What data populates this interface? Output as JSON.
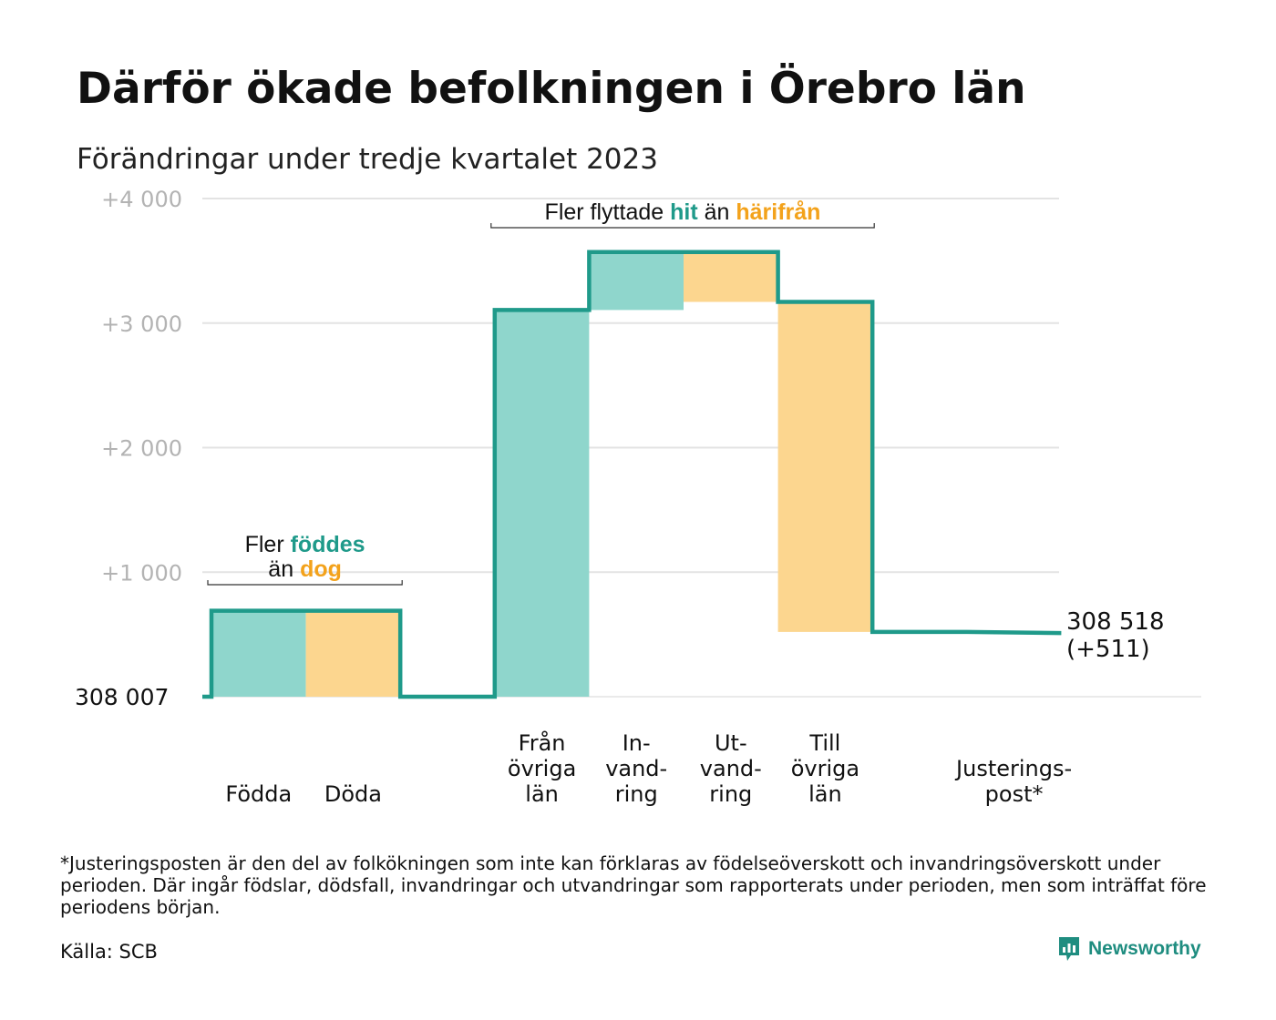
{
  "header": {
    "title": "Därför ökade befolkningen i Örebro län",
    "subtitle": "Förändringar under tredje kvartalet 2023"
  },
  "colors": {
    "increase": "#8fd6cc",
    "decrease": "#fcd68f",
    "line": "#1f9a8a",
    "accent_green": "#1f9a8a",
    "accent_orange": "#f3a21b",
    "grid": "#e3e3e3"
  },
  "chart_data": {
    "type": "waterfall",
    "start_value": 308007,
    "start_label": "308 007",
    "end_label": "308 518",
    "end_change_label": "(+511)",
    "y_ticks": [
      "+1 000",
      "+2 000",
      "+3 000",
      "+4 000"
    ],
    "y_tick_values": [
      1000,
      2000,
      3000,
      4000
    ],
    "ylim": [
      0,
      4000
    ],
    "grid": true,
    "steps": [
      {
        "label": [
          "Födda"
        ],
        "from": 0,
        "to": 690,
        "kind": "increase",
        "slot": 0
      },
      {
        "label": [
          "Döda"
        ],
        "from": 690,
        "to": 0,
        "kind": "decrease",
        "slot": 1
      },
      {
        "label": [
          "Från",
          "övriga",
          "län"
        ],
        "from": 0,
        "to": 3105,
        "kind": "increase",
        "slot": 3
      },
      {
        "label": [
          "In-",
          "vand-",
          "ring"
        ],
        "from": 3105,
        "to": 3570,
        "kind": "increase",
        "slot": 4
      },
      {
        "label": [
          "Ut-",
          "vand-",
          "ring"
        ],
        "from": 3570,
        "to": 3170,
        "kind": "decrease",
        "slot": 5
      },
      {
        "label": [
          "Till",
          "övriga",
          "län"
        ],
        "from": 3170,
        "to": 520,
        "kind": "decrease",
        "slot": 6
      },
      {
        "label": [
          "Justerings-",
          "post*"
        ],
        "from": 520,
        "to": 511,
        "kind": "adjustment",
        "slot": 8
      }
    ],
    "annotations": [
      {
        "group": "births",
        "slots": [
          0,
          1
        ],
        "lines": [
          [
            {
              "text": "Fler ",
              "style": "plain"
            },
            {
              "text": "föddes",
              "style": "green"
            }
          ],
          [
            {
              "text": "än ",
              "style": "plain"
            },
            {
              "text": "dog",
              "style": "orange"
            }
          ]
        ]
      },
      {
        "group": "migration",
        "slots": [
          3,
          6
        ],
        "lines": [
          [
            {
              "text": "Fler flyttade ",
              "style": "plain"
            },
            {
              "text": "hit",
              "style": "green"
            },
            {
              "text": " än ",
              "style": "plain"
            },
            {
              "text": "härifrån",
              "style": "orange"
            }
          ]
        ]
      }
    ]
  },
  "footer": {
    "footnote": "*Justeringsposten är den del av folkökningen som inte kan förklaras av födelseöverskott och invandringsöverskott under perioden. Där ingår födslar, dödsfall, invandringar och utvandringar som rapporterats under perioden, men som inträffat före periodens början.",
    "source": "Källa: SCB",
    "brand": "Newsworthy"
  }
}
